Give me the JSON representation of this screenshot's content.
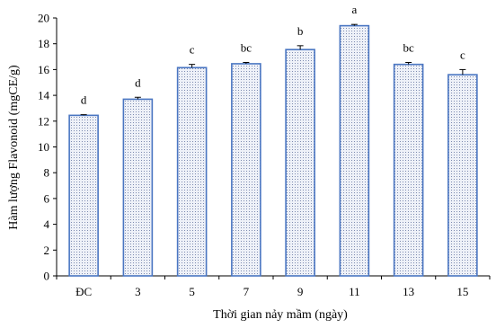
{
  "chart_data": {
    "type": "bar",
    "categories": [
      "ĐC",
      "3",
      "5",
      "7",
      "9",
      "11",
      "13",
      "15"
    ],
    "values": [
      12.45,
      13.7,
      16.15,
      16.45,
      17.55,
      19.4,
      16.4,
      15.6
    ],
    "error_bars": [
      0.05,
      0.15,
      0.25,
      0.1,
      0.3,
      0.1,
      0.15,
      0.4
    ],
    "significance_letters": [
      "d",
      "d",
      "c",
      "bc",
      "b",
      "a",
      "bc",
      "c"
    ],
    "title": "",
    "xlabel": "Thời gian nảy mầm (ngày)",
    "ylabel": "Hàm lượng Flavonoid (mgCE/g)",
    "ylim": [
      0,
      20
    ],
    "yticks": [
      0,
      2,
      4,
      6,
      8,
      10,
      12,
      14,
      16,
      18,
      20
    ],
    "grid": false,
    "bar_pattern": "dotted",
    "colors": {
      "bar_fill": "#eef1f8",
      "bar_dots": "#7d8bb0",
      "bar_border": "#4a76c2",
      "axis": "#000000",
      "error_bar": "#000000"
    }
  }
}
